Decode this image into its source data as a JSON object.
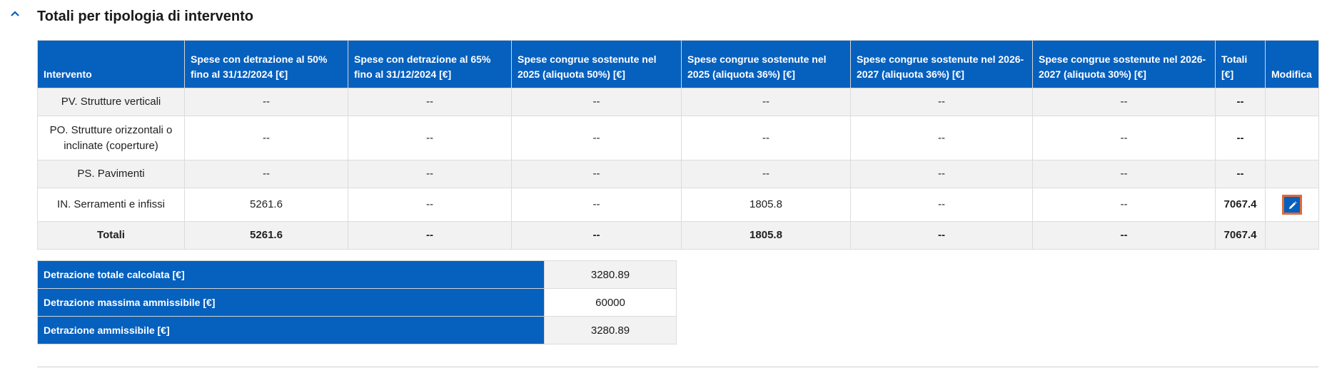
{
  "section": {
    "title": "Totali per tipologia di intervento"
  },
  "colors": {
    "header_bg": "#0660be",
    "row_alt_bg": "#f2f2f2",
    "edit_outline": "#e06a3b"
  },
  "icons": {
    "collapse": "chevron-up-icon",
    "edit": "pencil-icon"
  },
  "table": {
    "headers": [
      "Intervento",
      "Spese con detrazione al 50% fino al 31/12/2024 [€]",
      "Spese con detrazione al 65% fino al 31/12/2024 [€]",
      "Spese congrue sostenute nel 2025 (aliquota 50%) [€]",
      "Spese congrue sostenute nel 2025 (aliquota 36%) [€]",
      "Spese congrue sostenute nel 2026-2027 (aliquota 36%) [€]",
      "Spese congrue sostenute nel 2026-2027 (aliquota 30%) [€]",
      "Totali [€]",
      "Modifica"
    ],
    "rows": [
      {
        "cells": [
          "PV. Strutture verticali",
          "--",
          "--",
          "--",
          "--",
          "--",
          "--",
          "--"
        ]
      },
      {
        "cells": [
          "PO. Strutture orizzontali o inclinate (coperture)",
          "--",
          "--",
          "--",
          "--",
          "--",
          "--",
          "--"
        ]
      },
      {
        "cells": [
          "PS. Pavimenti",
          "--",
          "--",
          "--",
          "--",
          "--",
          "--",
          "--"
        ]
      },
      {
        "cells": [
          "IN. Serramenti e infissi",
          "5261.6",
          "--",
          "--",
          "1805.8",
          "--",
          "--",
          "7067.4"
        ]
      }
    ],
    "totals": {
      "cells": [
        "Totali",
        "5261.6",
        "--",
        "--",
        "1805.8",
        "--",
        "--",
        "7067.4"
      ]
    }
  },
  "summary": [
    {
      "label": "Detrazione totale calcolata [€]",
      "value": "3280.89"
    },
    {
      "label": "Detrazione massima ammissibile [€]",
      "value": "60000"
    },
    {
      "label": "Detrazione ammissibile [€]",
      "value": "3280.89"
    }
  ]
}
